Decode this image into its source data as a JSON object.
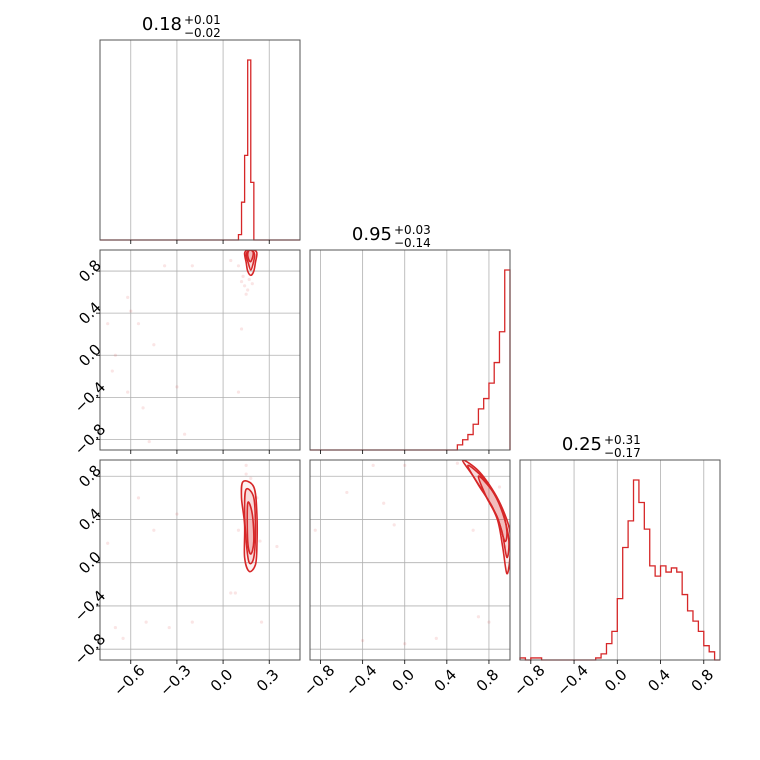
{
  "chart_data": {
    "type": "corner",
    "color": "#d62728",
    "parameters": [
      {
        "title": {
          "value": "0.18",
          "plus": "+0.01",
          "minus": "−0.02"
        },
        "range": [
          -0.8,
          0.5
        ],
        "ticks": [
          -0.6,
          -0.3,
          0.0,
          0.3
        ],
        "tick_labels": [
          "−0.6",
          "−0.3",
          "0.0",
          "0.3"
        ],
        "histogram": {
          "bin_edges": [
            0.1,
            0.12,
            0.14,
            0.16,
            0.18,
            0.2,
            0.22,
            0.24
          ],
          "counts": [
            0.03,
            0.21,
            0.47,
            1.0,
            0.32,
            0.0,
            0.0
          ]
        }
      },
      {
        "title": {
          "value": "0.95",
          "plus": "+0.03",
          "minus": "−0.14"
        },
        "range": [
          -0.9,
          1.0
        ],
        "ticks": [
          -0.8,
          -0.4,
          0.0,
          0.4,
          0.8
        ],
        "tick_labels": [
          "−0.8",
          "−0.4",
          "0.0",
          "0.4",
          "0.8"
        ],
        "histogram": {
          "bin_edges": [
            0.5,
            0.55,
            0.6,
            0.65,
            0.7,
            0.75,
            0.8,
            0.85,
            0.9,
            0.95,
            1.0
          ],
          "counts": [
            0.01,
            0.02,
            0.03,
            0.05,
            0.08,
            0.1,
            0.13,
            0.17,
            0.23,
            0.35
          ]
        }
      },
      {
        "title": {
          "value": "0.25",
          "plus": "+0.31",
          "minus": "−0.17"
        },
        "range": [
          -0.9,
          0.95
        ],
        "ticks": [
          -0.8,
          -0.4,
          0.0,
          0.4,
          0.8
        ],
        "tick_labels": [
          "−0.8",
          "−0.4",
          "0.0",
          "0.4",
          "0.8"
        ],
        "histogram": {
          "bin_edges": [
            -0.9,
            -0.85,
            -0.8,
            -0.75,
            -0.7,
            -0.65,
            -0.6,
            -0.55,
            -0.5,
            -0.45,
            -0.4,
            -0.35,
            -0.3,
            -0.25,
            -0.2,
            -0.15,
            -0.1,
            -0.05,
            0.0,
            0.05,
            0.1,
            0.15,
            0.2,
            0.25,
            0.3,
            0.35,
            0.4,
            0.45,
            0.5,
            0.55,
            0.6,
            0.65,
            0.7,
            0.75,
            0.8,
            0.85,
            0.9,
            0.95
          ],
          "counts": [
            0.01,
            0.0,
            0.01,
            0.01,
            0.0,
            0.0,
            0.0,
            0.0,
            0.0,
            0.0,
            0.0,
            0.0,
            0.0,
            0.0,
            0.01,
            0.03,
            0.08,
            0.14,
            0.3,
            0.55,
            0.68,
            0.88,
            0.77,
            0.64,
            0.46,
            0.41,
            0.46,
            0.43,
            0.45,
            0.43,
            0.32,
            0.24,
            0.19,
            0.14,
            0.07,
            0.04,
            0.0
          ]
        }
      }
    ],
    "pairs": [
      {
        "x_param": 0,
        "y_param": 1,
        "contours": [
          [
            [
              0.14,
              0.97
            ],
            [
              0.15,
              0.88
            ],
            [
              0.16,
              0.8
            ],
            [
              0.18,
              0.76
            ],
            [
              0.2,
              0.8
            ],
            [
              0.21,
              0.88
            ],
            [
              0.22,
              0.97
            ],
            [
              0.2,
              1.0
            ],
            [
              0.16,
              1.0
            ],
            [
              0.14,
              0.97
            ]
          ],
          [
            [
              0.15,
              0.96
            ],
            [
              0.165,
              0.87
            ],
            [
              0.18,
              0.81
            ],
            [
              0.195,
              0.87
            ],
            [
              0.205,
              0.96
            ],
            [
              0.18,
              1.0
            ],
            [
              0.15,
              0.96
            ]
          ],
          [
            [
              0.16,
              0.95
            ],
            [
              0.175,
              0.89
            ],
            [
              0.19,
              0.92
            ],
            [
              0.195,
              0.98
            ],
            [
              0.17,
              1.0
            ],
            [
              0.16,
              0.95
            ]
          ]
        ],
        "points": [
          [
            0.12,
            0.7
          ],
          [
            0.14,
            0.66
          ],
          [
            0.16,
            0.62
          ],
          [
            0.13,
            0.75
          ],
          [
            0.19,
            0.68
          ],
          [
            0.15,
            0.58
          ],
          [
            0.17,
            0.72
          ],
          [
            0.1,
            0.85
          ],
          [
            -0.62,
            0.55
          ],
          [
            -0.38,
            0.85
          ],
          [
            -0.6,
            0.42
          ],
          [
            -0.55,
            0.3
          ],
          [
            -0.45,
            0.1
          ],
          [
            -0.7,
            0.0
          ],
          [
            -0.72,
            -0.15
          ],
          [
            -0.62,
            -0.35
          ],
          [
            -0.52,
            -0.5
          ],
          [
            -0.48,
            -0.82
          ],
          [
            -0.25,
            -0.75
          ],
          [
            0.1,
            -0.35
          ],
          [
            0.12,
            0.25
          ],
          [
            -0.3,
            -0.3
          ],
          [
            -0.75,
            0.3
          ],
          [
            0.05,
            0.9
          ],
          [
            -0.2,
            0.85
          ]
        ]
      },
      {
        "x_param": 0,
        "y_param": 2,
        "contours": [
          [
            [
              0.13,
              0.75
            ],
            [
              0.2,
              0.7
            ],
            [
              0.22,
              0.45
            ],
            [
              0.22,
              0.15
            ],
            [
              0.21,
              -0.02
            ],
            [
              0.17,
              -0.08
            ],
            [
              0.14,
              0.05
            ],
            [
              0.14,
              0.35
            ],
            [
              0.12,
              0.6
            ],
            [
              0.13,
              0.75
            ]
          ],
          [
            [
              0.15,
              0.68
            ],
            [
              0.2,
              0.6
            ],
            [
              0.21,
              0.3
            ],
            [
              0.2,
              0.05
            ],
            [
              0.17,
              0.0
            ],
            [
              0.15,
              0.2
            ],
            [
              0.14,
              0.5
            ],
            [
              0.15,
              0.68
            ]
          ],
          [
            [
              0.16,
              0.55
            ],
            [
              0.19,
              0.45
            ],
            [
              0.2,
              0.2
            ],
            [
              0.18,
              0.08
            ],
            [
              0.16,
              0.2
            ],
            [
              0.16,
              0.55
            ]
          ]
        ],
        "points": [
          [
            0.15,
            0.82
          ],
          [
            0.18,
            0.78
          ],
          [
            0.22,
            0.6
          ],
          [
            0.1,
            0.3
          ],
          [
            0.24,
            0.2
          ],
          [
            0.08,
            -0.28
          ],
          [
            0.05,
            -0.28
          ],
          [
            0.15,
            0.9
          ],
          [
            -0.75,
            0.18
          ],
          [
            -0.7,
            -0.6
          ],
          [
            -0.65,
            -0.7
          ],
          [
            -0.5,
            -0.55
          ],
          [
            -0.45,
            0.3
          ],
          [
            -0.3,
            0.45
          ],
          [
            -0.35,
            -0.6
          ],
          [
            -0.55,
            0.6
          ],
          [
            -0.2,
            -0.55
          ],
          [
            0.25,
            -0.55
          ],
          [
            0.35,
            0.15
          ]
        ]
      },
      {
        "x_param": 1,
        "y_param": 2,
        "contours": [
          [
            [
              0.55,
              0.95
            ],
            [
              0.7,
              0.85
            ],
            [
              0.85,
              0.65
            ],
            [
              0.95,
              0.45
            ],
            [
              1.0,
              0.28
            ],
            [
              1.0,
              0.05
            ],
            [
              0.97,
              -0.1
            ],
            [
              0.93,
              0.15
            ],
            [
              0.88,
              0.4
            ],
            [
              0.78,
              0.6
            ],
            [
              0.65,
              0.8
            ],
            [
              0.55,
              0.95
            ]
          ],
          [
            [
              0.6,
              0.9
            ],
            [
              0.75,
              0.78
            ],
            [
              0.87,
              0.6
            ],
            [
              0.95,
              0.4
            ],
            [
              0.99,
              0.2
            ],
            [
              0.97,
              0.05
            ],
            [
              0.92,
              0.3
            ],
            [
              0.83,
              0.52
            ],
            [
              0.7,
              0.72
            ],
            [
              0.6,
              0.9
            ]
          ],
          [
            [
              0.7,
              0.8
            ],
            [
              0.82,
              0.68
            ],
            [
              0.92,
              0.5
            ],
            [
              0.97,
              0.3
            ],
            [
              0.95,
              0.2
            ],
            [
              0.88,
              0.42
            ],
            [
              0.78,
              0.6
            ],
            [
              0.7,
              0.8
            ]
          ]
        ],
        "points": [
          [
            0.5,
            0.92
          ],
          [
            0.58,
            0.95
          ],
          [
            0.98,
            0.25
          ],
          [
            0.99,
            -0.05
          ],
          [
            0.95,
            0.15
          ],
          [
            0.9,
            0.7
          ],
          [
            -0.85,
            0.3
          ],
          [
            -0.55,
            0.65
          ],
          [
            -0.3,
            0.9
          ],
          [
            -0.2,
            0.55
          ],
          [
            0.0,
            0.9
          ],
          [
            -0.1,
            0.35
          ],
          [
            0.7,
            -0.5
          ],
          [
            0.65,
            0.3
          ],
          [
            0.0,
            -0.75
          ],
          [
            0.3,
            -0.7
          ],
          [
            -0.4,
            -0.72
          ],
          [
            0.8,
            -0.55
          ]
        ]
      }
    ]
  }
}
